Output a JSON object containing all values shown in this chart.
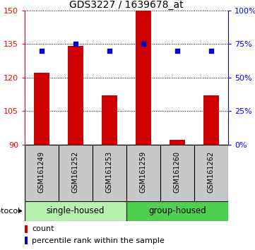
{
  "title": "GDS3227 / 1639678_at",
  "samples": [
    "GSM161249",
    "GSM161252",
    "GSM161253",
    "GSM161259",
    "GSM161260",
    "GSM161262"
  ],
  "count_values": [
    122.0,
    134.0,
    112.0,
    150.0,
    92.0,
    112.0
  ],
  "percentile_values": [
    70,
    75,
    70,
    75,
    70,
    70
  ],
  "y_min": 90,
  "y_max": 150,
  "y_ticks": [
    90,
    105,
    120,
    135,
    150
  ],
  "right_y_ticks": [
    0,
    25,
    50,
    75,
    100
  ],
  "bar_color": "#cc0000",
  "dot_color": "#0000cc",
  "single_housed_color": "#b8f0b0",
  "group_housed_color": "#50d050",
  "protocol_label": "protocol",
  "legend_count_label": "count",
  "legend_pct_label": "percentile rank within the sample",
  "sample_box_color": "#c8c8c8",
  "title_fontsize": 10,
  "tick_fontsize": 8,
  "sample_fontsize": 7,
  "group_fontsize": 8.5,
  "legend_fontsize": 8
}
